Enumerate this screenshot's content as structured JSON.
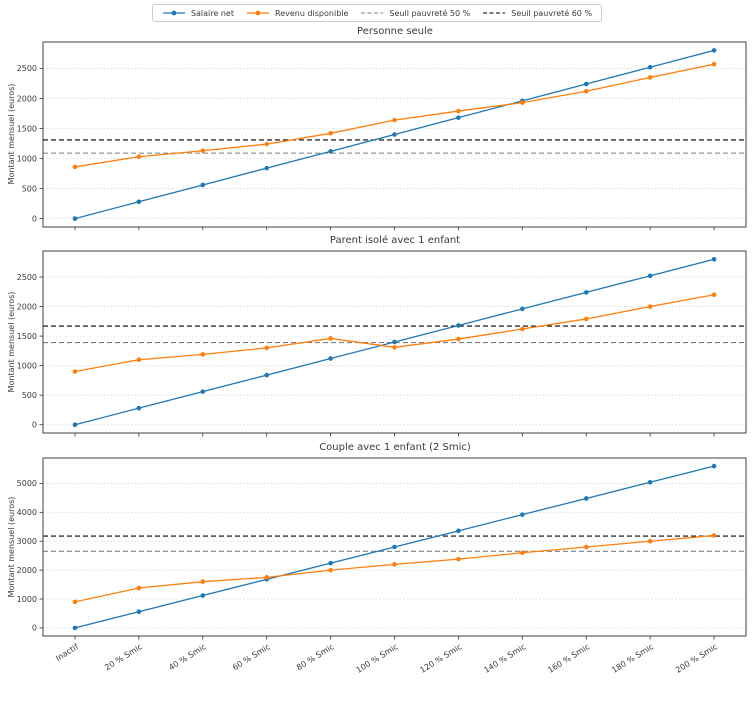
{
  "legend": {
    "items": [
      {
        "label": "Salaire net",
        "color": "#1f77b4",
        "style": "solid-marker"
      },
      {
        "label": "Revenu disponible",
        "color": "#ff7f0e",
        "style": "solid-marker"
      },
      {
        "label": "Seuil pauvreté 50 %",
        "color": "#7f7f7f",
        "style": "dashed"
      },
      {
        "label": "Seuil pauvreté 60 %",
        "color": "#000000",
        "style": "dashed"
      }
    ]
  },
  "chart_data": [
    {
      "type": "line",
      "title": "Personne seule",
      "ylabel": "Montant mensuel (euros)",
      "categories": [
        "Inactif",
        "20 % Smic",
        "40 % Smic",
        "60 % Smic",
        "80 % Smic",
        "100 % Smic",
        "120 % Smic",
        "140 % Smic",
        "160 % Smic",
        "180 % Smic",
        "200 % Smic"
      ],
      "series": [
        {
          "name": "Salaire net",
          "color": "#1f77b4",
          "values": [
            0,
            280,
            560,
            840,
            1120,
            1400,
            1680,
            1960,
            2240,
            2520,
            2800
          ]
        },
        {
          "name": "Revenu disponible",
          "color": "#ff7f0e",
          "values": [
            860,
            1030,
            1130,
            1240,
            1420,
            1640,
            1790,
            1930,
            2120,
            2350,
            2570
          ]
        }
      ],
      "thresholds": [
        {
          "name": "Seuil pauvreté 50 %",
          "value": 1090,
          "color": "#7f7f7f"
        },
        {
          "name": "Seuil pauvreté 60 %",
          "value": 1310,
          "color": "#000000"
        }
      ],
      "yticks": [
        0,
        500,
        1000,
        1500,
        2000,
        2500
      ],
      "ylim": [
        -140,
        2940
      ],
      "grid": true,
      "legend_position": "top-center-shared"
    },
    {
      "type": "line",
      "title": "Parent isolé avec 1 enfant",
      "ylabel": "Montant mensuel (euros)",
      "categories": [
        "Inactif",
        "20 % Smic",
        "40 % Smic",
        "60 % Smic",
        "80 % Smic",
        "100 % Smic",
        "120 % Smic",
        "140 % Smic",
        "160 % Smic",
        "180 % Smic",
        "200 % Smic"
      ],
      "series": [
        {
          "name": "Salaire net",
          "color": "#1f77b4",
          "values": [
            0,
            280,
            560,
            840,
            1120,
            1400,
            1680,
            1960,
            2240,
            2520,
            2800
          ]
        },
        {
          "name": "Revenu disponible",
          "color": "#ff7f0e",
          "values": [
            900,
            1100,
            1190,
            1300,
            1460,
            1310,
            1450,
            1620,
            1790,
            2000,
            2200
          ]
        }
      ],
      "thresholds": [
        {
          "name": "Seuil pauvreté 50 %",
          "value": 1390,
          "color": "#7f7f7f"
        },
        {
          "name": "Seuil pauvreté 60 %",
          "value": 1670,
          "color": "#000000"
        }
      ],
      "yticks": [
        0,
        500,
        1000,
        1500,
        2000,
        2500
      ],
      "ylim": [
        -140,
        2940
      ],
      "grid": true,
      "legend_position": "top-center-shared"
    },
    {
      "type": "line",
      "title": "Couple avec 1 enfant (2 Smic)",
      "ylabel": "Montant mensuel (euros)",
      "categories": [
        "Inactif",
        "20 % Smic",
        "40 % Smic",
        "60 % Smic",
        "80 % Smic",
        "100 % Smic",
        "120 % Smic",
        "140 % Smic",
        "160 % Smic",
        "180 % Smic",
        "200 % Smic"
      ],
      "series": [
        {
          "name": "Salaire net",
          "color": "#1f77b4",
          "values": [
            0,
            560,
            1120,
            1680,
            2240,
            2800,
            3360,
            3920,
            4480,
            5040,
            5600
          ]
        },
        {
          "name": "Revenu disponible",
          "color": "#ff7f0e",
          "values": [
            900,
            1380,
            1600,
            1750,
            2000,
            2200,
            2380,
            2600,
            2800,
            3000,
            3200
          ]
        }
      ],
      "thresholds": [
        {
          "name": "Seuil pauvreté 50 %",
          "value": 2650,
          "color": "#7f7f7f"
        },
        {
          "name": "Seuil pauvreté 60 %",
          "value": 3180,
          "color": "#000000"
        }
      ],
      "yticks": [
        0,
        1000,
        2000,
        3000,
        4000,
        5000
      ],
      "ylim": [
        -280,
        5880
      ],
      "grid": true,
      "legend_position": "top-center-shared"
    }
  ]
}
